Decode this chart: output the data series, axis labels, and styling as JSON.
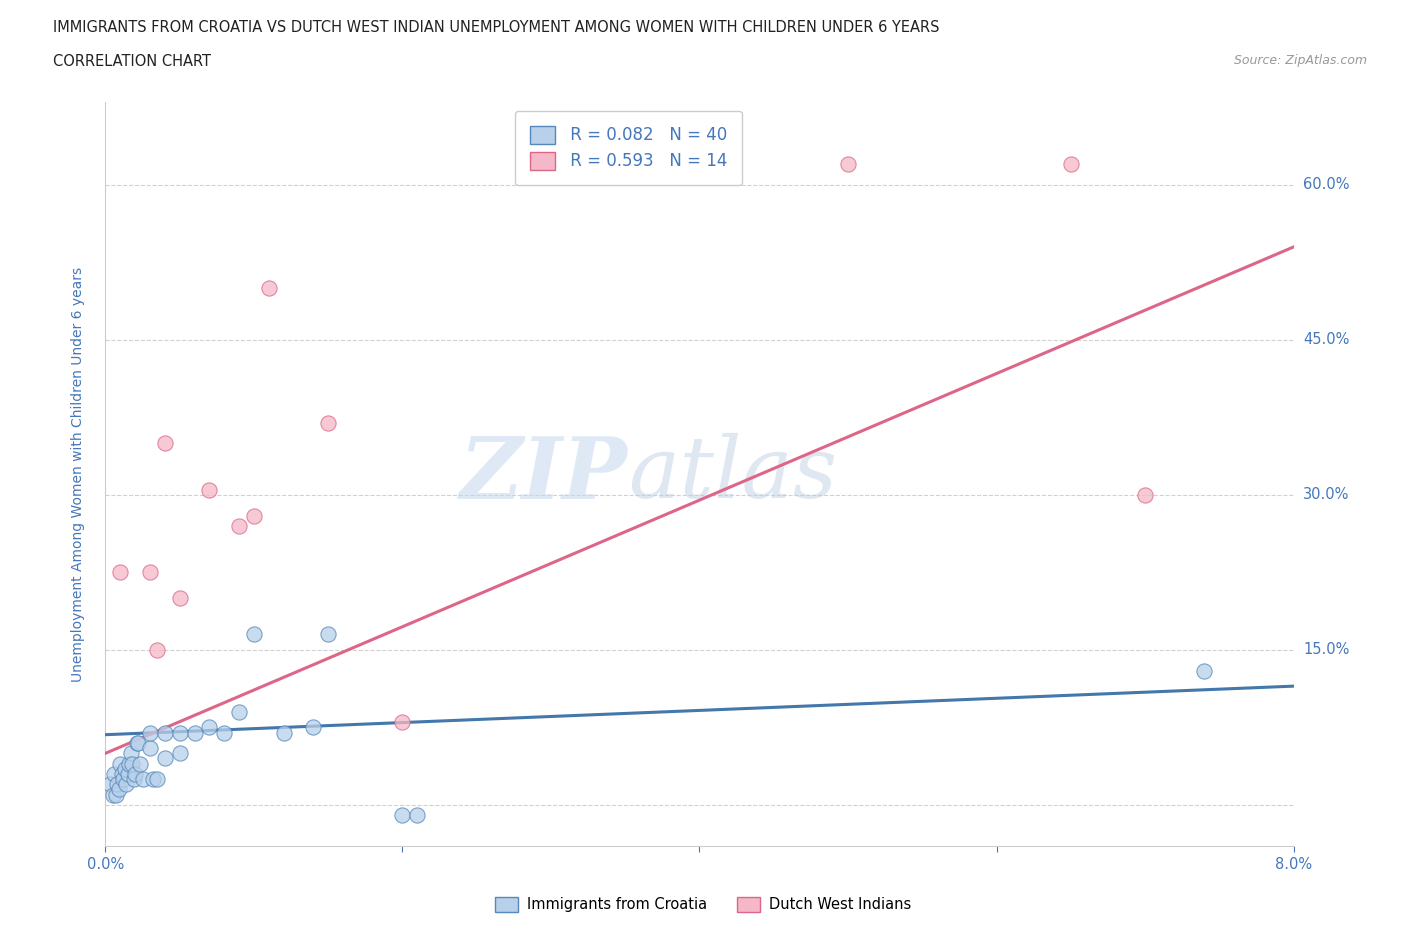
{
  "title_line1": "IMMIGRANTS FROM CROATIA VS DUTCH WEST INDIAN UNEMPLOYMENT AMONG WOMEN WITH CHILDREN UNDER 6 YEARS",
  "title_line2": "CORRELATION CHART",
  "source": "Source: ZipAtlas.com",
  "ylabel": "Unemployment Among Women with Children Under 6 years",
  "xmin": 0.0,
  "xmax": 0.08,
  "ymin": -0.04,
  "ymax": 0.68,
  "ytick_vals": [
    0.0,
    0.15,
    0.3,
    0.45,
    0.6
  ],
  "ytick_labels": [
    "",
    "15.0%",
    "30.0%",
    "45.0%",
    "60.0%"
  ],
  "xtick_vals": [
    0.0,
    0.02,
    0.04,
    0.06,
    0.08
  ],
  "xtick_labels": [
    "0.0%",
    "",
    "",
    "",
    "8.0%"
  ],
  "watermark_zip": "ZIP",
  "watermark_atlas": "atlas",
  "blue_R": 0.082,
  "blue_N": 40,
  "pink_R": 0.593,
  "pink_N": 14,
  "blue_fill": "#b8d0ea",
  "pink_fill": "#f5b8c8",
  "blue_edge": "#5588bb",
  "pink_edge": "#dd6688",
  "blue_line": "#4477aa",
  "pink_line": "#dd6688",
  "legend_label_blue": "Immigrants from Croatia",
  "legend_label_pink": "Dutch West Indians",
  "blue_scatter_x": [
    0.0003,
    0.0005,
    0.0006,
    0.0007,
    0.0008,
    0.0009,
    0.001,
    0.0011,
    0.0012,
    0.0013,
    0.0014,
    0.0015,
    0.0016,
    0.0017,
    0.0018,
    0.0019,
    0.002,
    0.0021,
    0.0022,
    0.0023,
    0.0025,
    0.003,
    0.003,
    0.0032,
    0.0035,
    0.004,
    0.004,
    0.005,
    0.005,
    0.006,
    0.007,
    0.008,
    0.009,
    0.01,
    0.012,
    0.014,
    0.015,
    0.02,
    0.021,
    0.074
  ],
  "blue_scatter_y": [
    0.02,
    0.01,
    0.03,
    0.01,
    0.02,
    0.015,
    0.04,
    0.03,
    0.025,
    0.035,
    0.02,
    0.03,
    0.04,
    0.05,
    0.04,
    0.025,
    0.03,
    0.06,
    0.06,
    0.04,
    0.025,
    0.055,
    0.07,
    0.025,
    0.025,
    0.07,
    0.045,
    0.05,
    0.07,
    0.07,
    0.075,
    0.07,
    0.09,
    0.165,
    0.07,
    0.075,
    0.165,
    -0.01,
    -0.01,
    0.13
  ],
  "pink_scatter_x": [
    0.001,
    0.003,
    0.0035,
    0.004,
    0.005,
    0.007,
    0.009,
    0.01,
    0.011,
    0.015,
    0.02,
    0.05,
    0.065,
    0.07
  ],
  "pink_scatter_y": [
    0.225,
    0.225,
    0.15,
    0.35,
    0.2,
    0.305,
    0.27,
    0.28,
    0.5,
    0.37,
    0.08,
    0.62,
    0.62,
    0.3
  ],
  "blue_trend_x": [
    0.0,
    0.08
  ],
  "blue_trend_y": [
    0.068,
    0.115
  ],
  "pink_trend_x": [
    0.0,
    0.08
  ],
  "pink_trend_y": [
    0.05,
    0.54
  ],
  "grid_color": "#cccccc",
  "bg_color": "#ffffff",
  "title_color": "#222222",
  "accent_color": "#4477bb"
}
